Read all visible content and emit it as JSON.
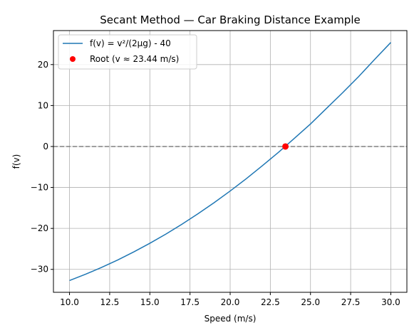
{
  "chart_data": {
    "type": "line",
    "title": "Secant Method — Car Braking Distance Example",
    "xlabel": "Speed (m/s)",
    "ylabel": "f(v)",
    "xlim": [
      9.0,
      31.0
    ],
    "ylim": [
      -35.6,
      28.3
    ],
    "grid": true,
    "legend_position": "top-left",
    "x_ticks": [
      10.0,
      12.5,
      15.0,
      17.5,
      20.0,
      22.5,
      25.0,
      27.5,
      30.0
    ],
    "x_tick_labels": [
      "10.0",
      "12.5",
      "15.0",
      "17.5",
      "20.0",
      "22.5",
      "25.0",
      "27.5",
      "30.0"
    ],
    "y_ticks": [
      -30,
      -20,
      -10,
      0,
      10,
      20
    ],
    "y_tick_labels": [
      "−30",
      "−20",
      "−10",
      "0",
      "10",
      "20"
    ],
    "reference_line": {
      "y": 0,
      "style": "dashed",
      "color": "#808080"
    },
    "series": [
      {
        "name": "f(v) = v²/(2μg) - 40",
        "color": "#1f77b4",
        "x": [
          10.0,
          11.0,
          12.0,
          13.0,
          14.0,
          15.0,
          16.0,
          17.0,
          18.0,
          19.0,
          20.0,
          21.0,
          22.0,
          23.0,
          24.0,
          25.0,
          26.0,
          27.0,
          28.0,
          29.0,
          30.0
        ],
        "y": [
          -32.72,
          -31.19,
          -29.52,
          -27.71,
          -25.73,
          -23.63,
          -21.38,
          -18.97,
          -16.42,
          -13.72,
          -10.87,
          -7.87,
          -4.71,
          -1.44,
          2.0,
          5.5,
          9.32,
          13.13,
          17.08,
          21.29,
          25.4
        ]
      }
    ],
    "points": [
      {
        "name": "Root (v ≈ 23.44 m/s)",
        "x": 23.44,
        "y": 0,
        "color": "#ff0000"
      }
    ]
  }
}
